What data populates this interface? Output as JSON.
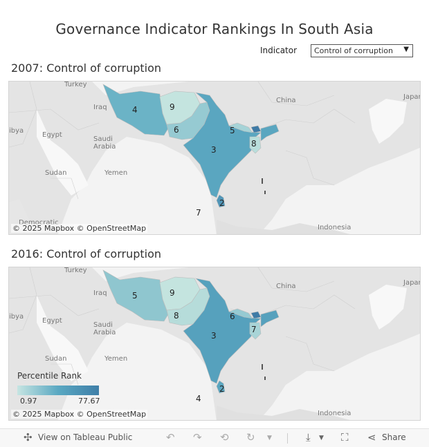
{
  "title": "Governance Indicator Rankings In South Asia",
  "filter": {
    "label": "Indicator",
    "value": "Control of corruption"
  },
  "maps": [
    {
      "title": "2007: Control of corruption",
      "ranks": {
        "iran": "4",
        "afghanistan": "9",
        "pakistan": "6",
        "india": "3",
        "nepal": "5",
        "bangladesh": "8",
        "sri_lanka": "2",
        "maldives": "7"
      },
      "colors": {
        "iran": "#6bb3c6",
        "afghanistan": "#c4e4df",
        "pakistan": "#96cad2",
        "india": "#5aa6c0",
        "nepal": "#a6d3d7",
        "bhutan": "#3f7ba6",
        "bangladesh": "#b9dedb",
        "sri_lanka": "#5196b8"
      }
    },
    {
      "title": "2016: Control of corruption",
      "ranks": {
        "iran": "5",
        "afghanistan": "9",
        "pakistan": "8",
        "india": "3",
        "nepal": "6",
        "bangladesh": "7",
        "sri_lanka": "2",
        "maldives": "4"
      },
      "colors": {
        "iran": "#8fc6cf",
        "afghanistan": "#c4e4df",
        "pakistan": "#b6dcda",
        "india": "#56a1bd",
        "nepal": "#96cad2",
        "bhutan": "#3f7ba6",
        "bangladesh": "#a8d4d7",
        "sri_lanka": "#5aa6c0"
      }
    }
  ],
  "places": {
    "turkey": "Turkey",
    "iraq": "Iraq",
    "egypt": "Egypt",
    "libya": "ibya",
    "saudi1": "Saudi",
    "saudi2": "Arabia",
    "sudan": "Sudan",
    "yemen": "Yemen",
    "china": "China",
    "japan": "Japar",
    "indonesia": "Indonesia",
    "democratic": "Democratic"
  },
  "attribution": "© 2025 Mapbox  © OpenStreetMap",
  "legend": {
    "title": "Percentile Rank",
    "min": "0.97",
    "max": "77.67"
  },
  "toolbar": {
    "view_label": "View on Tableau Public",
    "share_label": "Share"
  }
}
